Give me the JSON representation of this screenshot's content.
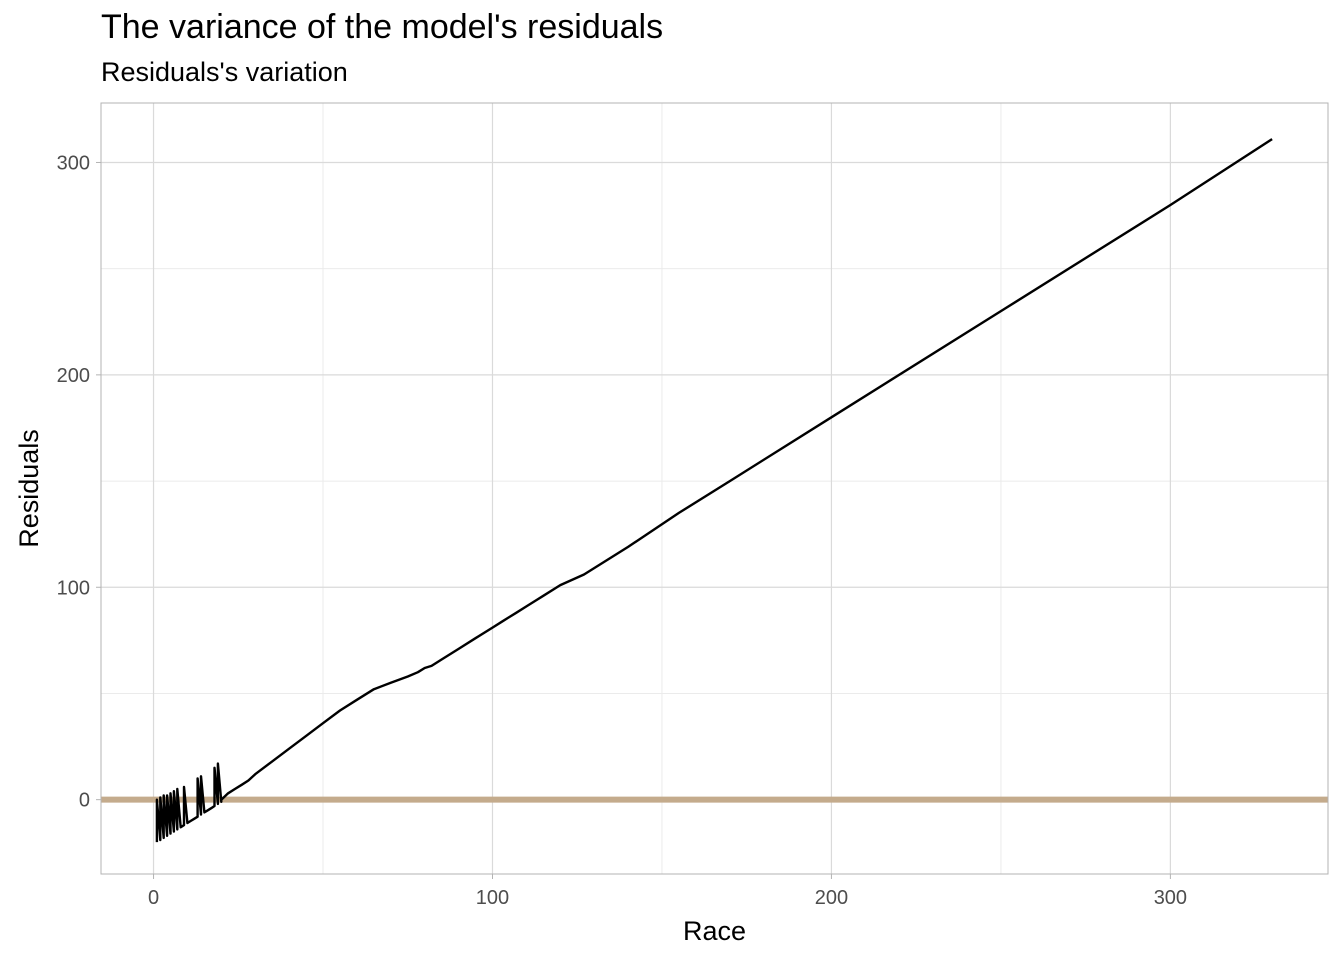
{
  "title": "The variance of the model's residuals",
  "subtitle": "Residuals's variation",
  "chart_data": {
    "type": "line",
    "title": "The variance of the model's residuals",
    "subtitle": "Residuals's variation",
    "xlabel": "Race",
    "ylabel": "Residuals",
    "xlim": [
      -15.5,
      346.5
    ],
    "ylim": [
      -35,
      328
    ],
    "x_ticks": [
      0,
      100,
      200,
      300
    ],
    "y_ticks": [
      0,
      100,
      200,
      300
    ],
    "x_minor": [
      50,
      150,
      250
    ],
    "y_minor": [
      50,
      150,
      250
    ],
    "grid": true,
    "legend": "none",
    "reference_line": {
      "y": 0,
      "color": "#c4ab8c"
    },
    "line_color": "#000000",
    "series": [
      {
        "x": [
          1,
          1,
          2,
          2,
          3,
          3,
          4,
          4,
          5,
          5,
          6,
          6,
          7,
          7,
          8,
          9,
          9,
          10,
          11,
          12,
          13,
          13,
          14,
          14,
          15,
          16,
          17,
          18,
          18,
          19,
          19,
          20,
          20,
          22,
          24,
          26,
          28,
          30,
          35,
          40,
          45,
          50,
          55,
          60,
          65,
          70,
          75,
          78,
          80,
          82,
          83,
          85,
          90,
          95,
          100,
          103,
          105,
          107,
          110,
          113,
          115,
          120,
          127,
          140,
          155,
          170,
          200,
          250,
          300,
          330
        ],
        "y": [
          -20,
          0,
          -19,
          1,
          -18,
          2,
          -17,
          2,
          -16,
          3,
          -15,
          4,
          -14,
          5,
          -13,
          -12,
          6,
          -11,
          -10,
          -9,
          -8,
          10,
          -7,
          11,
          -6,
          -5,
          -4,
          -3,
          15,
          -2,
          17,
          -1,
          0,
          3,
          5,
          7,
          9,
          12,
          18,
          24,
          30,
          36,
          42,
          47,
          52,
          55,
          58,
          60,
          62,
          63,
          64,
          66,
          71,
          76,
          81,
          84,
          86,
          88,
          91,
          94,
          96,
          101,
          106,
          119,
          135,
          150,
          180,
          230,
          280,
          311
        ]
      }
    ]
  }
}
